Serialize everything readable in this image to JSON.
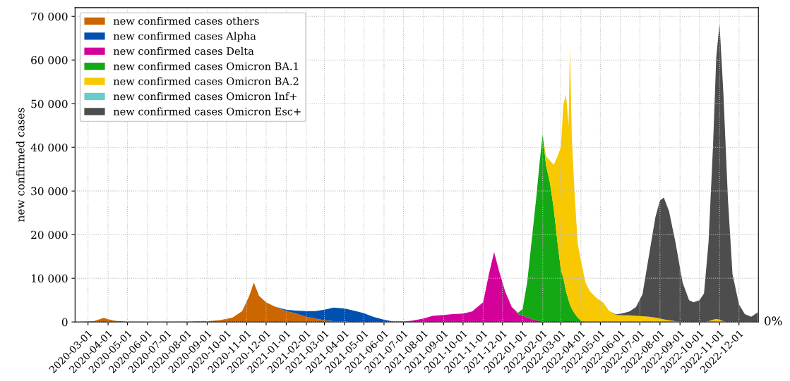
{
  "chart_data": {
    "type": "area",
    "stacked": true,
    "ylabel": "new confirmed cases",
    "x": [
      "2020-02-15",
      "2020-03-10",
      "2020-03-25",
      "2020-04-10",
      "2020-04-25",
      "2020-05-15",
      "2020-07-01",
      "2020-08-15",
      "2020-09-01",
      "2020-09-20",
      "2020-10-10",
      "2020-10-25",
      "2020-11-05",
      "2020-11-12",
      "2020-11-20",
      "2020-12-01",
      "2020-12-15",
      "2021-01-01",
      "2021-01-15",
      "2021-02-01",
      "2021-02-15",
      "2021-03-01",
      "2021-03-15",
      "2021-04-01",
      "2021-04-15",
      "2021-05-01",
      "2021-05-15",
      "2021-06-01",
      "2021-06-15",
      "2021-07-01",
      "2021-07-15",
      "2021-08-01",
      "2021-08-15",
      "2021-09-01",
      "2021-09-15",
      "2021-10-01",
      "2021-10-15",
      "2021-11-01",
      "2021-11-10",
      "2021-11-18",
      "2021-11-25",
      "2021-12-05",
      "2021-12-15",
      "2021-12-25",
      "2022-01-01",
      "2022-01-08",
      "2022-01-15",
      "2022-01-22",
      "2022-01-27",
      "2022-02-01",
      "2022-02-06",
      "2022-02-12",
      "2022-02-18",
      "2022-02-24",
      "2022-03-01",
      "2022-03-05",
      "2022-03-09",
      "2022-03-13",
      "2022-03-15",
      "2022-03-18",
      "2022-03-22",
      "2022-03-27",
      "2022-04-01",
      "2022-04-08",
      "2022-04-15",
      "2022-04-25",
      "2022-05-05",
      "2022-05-15",
      "2022-05-25",
      "2022-06-05",
      "2022-06-15",
      "2022-06-25",
      "2022-07-05",
      "2022-07-15",
      "2022-07-25",
      "2022-08-01",
      "2022-08-07",
      "2022-08-15",
      "2022-08-25",
      "2022-09-05",
      "2022-09-15",
      "2022-09-22",
      "2022-10-01",
      "2022-10-08",
      "2022-10-15",
      "2022-10-22",
      "2022-10-27",
      "2022-11-01",
      "2022-11-07",
      "2022-11-14",
      "2022-11-21",
      "2022-12-01",
      "2022-12-10",
      "2022-12-20",
      "2022-12-30"
    ],
    "series": [
      {
        "name": "new confirmed cases others",
        "color": "#cc6600",
        "values": [
          0,
          200,
          900,
          300,
          100,
          0,
          0,
          100,
          200,
          400,
          1000,
          2500,
          6000,
          9000,
          6000,
          4500,
          3500,
          2500,
          2000,
          1200,
          800,
          400,
          200,
          100,
          0,
          null,
          null,
          null,
          null,
          null,
          null,
          null,
          null,
          null,
          null,
          null,
          null,
          null,
          null,
          null,
          null,
          null,
          null,
          null,
          null,
          null,
          null,
          null,
          null,
          null,
          null,
          null,
          null,
          null,
          null,
          null,
          null,
          null,
          null,
          null,
          null,
          null,
          null,
          null,
          null,
          null,
          null,
          null,
          null,
          null,
          null,
          null,
          null,
          null,
          null,
          null,
          null,
          null,
          null,
          null,
          null,
          null,
          null,
          null,
          null,
          null,
          null,
          null,
          null,
          null,
          null,
          null,
          null,
          null,
          null
        ]
      },
      {
        "name": "new confirmed cases Alpha",
        "color": "#0050b0",
        "values": [
          null,
          null,
          null,
          null,
          null,
          null,
          null,
          null,
          null,
          null,
          null,
          null,
          null,
          null,
          null,
          null,
          0,
          300,
          600,
          1300,
          1700,
          2400,
          3100,
          3000,
          2600,
          2000,
          1200,
          500,
          100,
          0,
          null,
          null,
          null,
          null,
          null,
          null,
          null,
          null,
          null,
          null,
          null,
          null,
          null,
          null,
          null,
          null,
          null,
          null,
          null,
          null,
          null,
          null,
          null,
          null,
          null,
          null,
          null,
          null,
          null,
          null,
          null,
          null,
          null,
          null,
          null,
          null,
          null,
          null,
          null,
          null,
          null,
          null,
          null,
          null,
          null,
          null,
          null,
          null,
          null,
          null,
          null,
          null,
          null,
          null,
          null,
          null,
          null,
          null,
          null,
          null,
          null,
          null,
          null,
          null,
          null
        ]
      },
      {
        "name": "new confirmed cases Delta",
        "color": "#d4009a",
        "values": [
          null,
          null,
          null,
          null,
          null,
          null,
          null,
          null,
          null,
          null,
          null,
          null,
          null,
          null,
          null,
          null,
          null,
          null,
          null,
          null,
          null,
          null,
          null,
          null,
          null,
          null,
          null,
          null,
          0,
          100,
          300,
          800,
          1400,
          1600,
          1800,
          1900,
          2400,
          4500,
          11000,
          16000,
          12000,
          7000,
          3500,
          1800,
          1500,
          1000,
          700,
          400,
          200,
          0,
          null,
          null,
          null,
          null,
          null,
          null,
          null,
          null,
          null,
          null,
          null,
          null,
          null,
          null,
          null,
          null,
          null,
          null,
          null,
          null,
          null,
          null,
          null,
          null,
          null,
          null,
          null,
          null,
          null,
          null,
          null,
          null,
          null,
          null,
          null,
          null,
          null,
          null,
          null,
          null,
          null,
          null,
          null,
          null,
          null
        ]
      },
      {
        "name": "new confirmed cases Omicron BA.1",
        "color": "#14a814",
        "values": [
          null,
          null,
          null,
          null,
          null,
          null,
          null,
          null,
          null,
          null,
          null,
          null,
          null,
          null,
          null,
          null,
          null,
          null,
          null,
          null,
          null,
          null,
          null,
          null,
          null,
          null,
          null,
          null,
          null,
          null,
          null,
          null,
          null,
          null,
          null,
          null,
          null,
          null,
          null,
          null,
          null,
          null,
          0,
          300,
          1500,
          8000,
          18000,
          28000,
          36000,
          43000,
          36000,
          32000,
          26000,
          18000,
          12000,
          10000,
          7000,
          5000,
          4000,
          3000,
          2000,
          1000,
          300,
          0,
          null,
          null,
          null,
          null,
          null,
          null,
          null,
          null,
          null,
          null,
          null,
          null,
          null,
          null,
          null,
          null,
          null,
          null,
          null,
          null,
          null,
          null,
          null,
          null,
          null,
          null,
          null,
          null,
          null,
          null,
          null
        ]
      },
      {
        "name": "new confirmed cases Omicron BA.2",
        "color": "#f8c800",
        "values": [
          null,
          null,
          null,
          null,
          null,
          null,
          null,
          null,
          null,
          null,
          null,
          null,
          null,
          null,
          null,
          null,
          null,
          null,
          null,
          null,
          null,
          null,
          null,
          null,
          null,
          null,
          null,
          null,
          null,
          null,
          null,
          null,
          null,
          null,
          null,
          null,
          null,
          null,
          null,
          null,
          null,
          null,
          null,
          null,
          null,
          null,
          null,
          null,
          null,
          0,
          2000,
          5000,
          10000,
          20000,
          28000,
          40000,
          45000,
          40000,
          59000,
          39000,
          28000,
          17000,
          13700,
          9000,
          7000,
          5500,
          4500,
          2500,
          1600,
          1500,
          1500,
          1400,
          1300,
          1200,
          1000,
          800,
          600,
          400,
          200,
          0,
          0,
          0,
          0,
          0,
          200,
          500,
          700,
          500,
          200,
          0,
          null,
          null,
          null,
          null,
          null
        ]
      },
      {
        "name": "new confirmed cases Omicron Inf+",
        "color": "#66cccc",
        "values": [
          null,
          null,
          null,
          null,
          null,
          null,
          null,
          null,
          null,
          null,
          null,
          null,
          null,
          null,
          null,
          null,
          null,
          null,
          null,
          null,
          null,
          null,
          null,
          null,
          null,
          null,
          null,
          null,
          null,
          null,
          null,
          null,
          null,
          null,
          null,
          null,
          null,
          null,
          null,
          null,
          null,
          null,
          null,
          null,
          null,
          null,
          null,
          null,
          null,
          null,
          null,
          null,
          null,
          null,
          null,
          null,
          null,
          null,
          null,
          null,
          null,
          null,
          null,
          null,
          null,
          null,
          null,
          null,
          null,
          null,
          null,
          null,
          null,
          null,
          null,
          null,
          null,
          null,
          null,
          null,
          null,
          null,
          null,
          null,
          null,
          null,
          null,
          null,
          null,
          null,
          null,
          null,
          null,
          null,
          null
        ]
      },
      {
        "name": "new confirmed cases Omicron Esc+",
        "color": "#4d4d4d",
        "values": [
          null,
          null,
          null,
          null,
          null,
          null,
          null,
          null,
          null,
          null,
          null,
          null,
          null,
          null,
          null,
          null,
          null,
          null,
          null,
          null,
          null,
          null,
          null,
          null,
          null,
          null,
          null,
          null,
          null,
          null,
          null,
          null,
          null,
          null,
          null,
          null,
          null,
          null,
          null,
          null,
          null,
          null,
          null,
          null,
          null,
          null,
          null,
          null,
          null,
          null,
          null,
          null,
          null,
          null,
          null,
          null,
          null,
          null,
          null,
          null,
          null,
          null,
          null,
          null,
          null,
          null,
          null,
          0,
          100,
          500,
          900,
          2000,
          5000,
          14000,
          23000,
          27000,
          27900,
          25000,
          18000,
          9000,
          5000,
          4500,
          5000,
          6500,
          18000,
          40000,
          60000,
          67800,
          52000,
          28000,
          11000,
          4000,
          1800,
          1200,
          2200
        ]
      }
    ],
    "xlim": [
      "2020-02-10",
      "2022-12-31"
    ],
    "xticks": [
      "2020-03-01",
      "2020-04-01",
      "2020-05-01",
      "2020-06-01",
      "2020-07-01",
      "2020-08-01",
      "2020-09-01",
      "2020-10-01",
      "2020-11-01",
      "2020-12-01",
      "2021-01-01",
      "2021-02-01",
      "2021-03-01",
      "2021-04-01",
      "2021-05-01",
      "2021-06-01",
      "2021-07-01",
      "2021-08-01",
      "2021-09-01",
      "2021-10-01",
      "2021-11-01",
      "2021-12-01",
      "2022-01-01",
      "2022-02-01",
      "2022-03-01",
      "2022-04-01",
      "2022-05-01",
      "2022-06-01",
      "2022-07-01",
      "2022-08-01",
      "2022-09-01",
      "2022-10-01",
      "2022-11-01",
      "2022-12-01"
    ],
    "ylim": [
      0,
      72000
    ],
    "yticks": [
      0,
      {
        "value": 10000,
        "label": "10 000"
      },
      {
        "value": 20000,
        "label": "20 000"
      },
      {
        "value": 30000,
        "label": "30 000"
      },
      {
        "value": 40000,
        "label": "40 000"
      },
      {
        "value": 50000,
        "label": "50 000"
      },
      {
        "value": 60000,
        "label": "60 000"
      },
      {
        "value": 70000,
        "label": "70 000"
      }
    ],
    "annotations": [
      "0%"
    ],
    "grid": true,
    "legend": "top left"
  }
}
